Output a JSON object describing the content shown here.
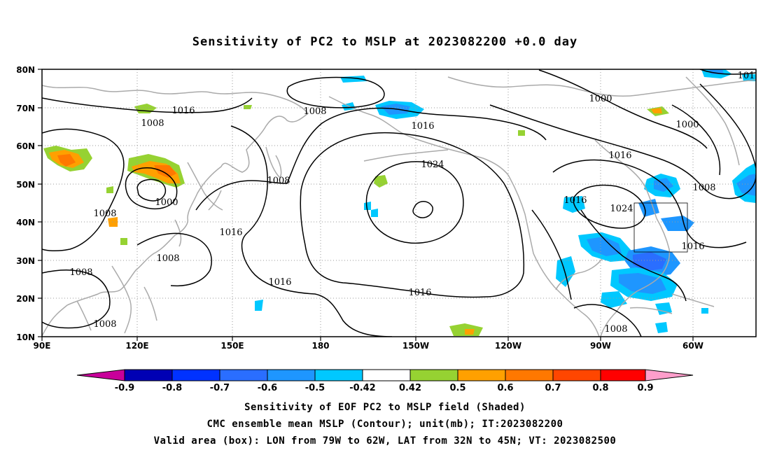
{
  "title": "Sensitivity of PC2 to MSLP at 2023082200 +0.0 day",
  "lat_labels": [
    "80N",
    "70N",
    "60N",
    "50N",
    "40N",
    "30N",
    "20N",
    "10N"
  ],
  "lon_labels": [
    "90E",
    "120E",
    "150E",
    "180",
    "150W",
    "120W",
    "90W",
    "60W"
  ],
  "contour_labels": [
    {
      "text": "1016",
      "role": "isobar"
    },
    {
      "text": "1008",
      "role": "isobar"
    },
    {
      "text": "1008",
      "role": "isobar"
    },
    {
      "text": "1016",
      "role": "isobar"
    },
    {
      "text": "1024",
      "role": "isobar"
    },
    {
      "text": "1008",
      "role": "isobar"
    },
    {
      "text": "1000",
      "role": "isobar"
    },
    {
      "text": "1008",
      "role": "isobar"
    },
    {
      "text": "1016",
      "role": "isobar"
    },
    {
      "text": "1008",
      "role": "isobar"
    },
    {
      "text": "1008",
      "role": "isobar"
    },
    {
      "text": "1016",
      "role": "isobar"
    },
    {
      "text": "1016",
      "role": "isobar"
    },
    {
      "text": "1008",
      "role": "isobar"
    },
    {
      "text": "1000",
      "role": "isobar"
    },
    {
      "text": "1000",
      "role": "isobar"
    },
    {
      "text": "1016",
      "role": "isobar"
    },
    {
      "text": "1008",
      "role": "isobar"
    },
    {
      "text": "1016",
      "role": "isobar"
    },
    {
      "text": "1024",
      "role": "isobar"
    },
    {
      "text": "1016",
      "role": "isobar"
    },
    {
      "text": "1008",
      "role": "isobar"
    },
    {
      "text": "101",
      "role": "isobar"
    }
  ],
  "colorbar": {
    "labels": [
      "-0.9",
      "-0.8",
      "-0.7",
      "-0.6",
      "-0.5",
      "-0.42",
      "0.42",
      "0.5",
      "0.6",
      "0.7",
      "0.8",
      "0.9"
    ],
    "colors": [
      "#0000b4",
      "#0032ff",
      "#2a6eff",
      "#1e96ff",
      "#00c8ff",
      "#ffffff",
      "#96d232",
      "#ffa000",
      "#ff7800",
      "#ff4600",
      "#ff0000"
    ],
    "low_end_color": "#c8009a",
    "high_end_color": "#ff9ecb"
  },
  "valid_box": {
    "lon_min": -79,
    "lon_max": -62,
    "lat_min": 32,
    "lat_max": 45
  },
  "captions": [
    "Sensitivity of EOF PC2 to MSLP field (Shaded)",
    "CMC ensemble mean MSLP (Contour); unit(mb); IT:2023082200",
    "Valid area (box): LON from 79W to 62W, LAT from 32N to 45N; VT: 2023082500"
  ]
}
